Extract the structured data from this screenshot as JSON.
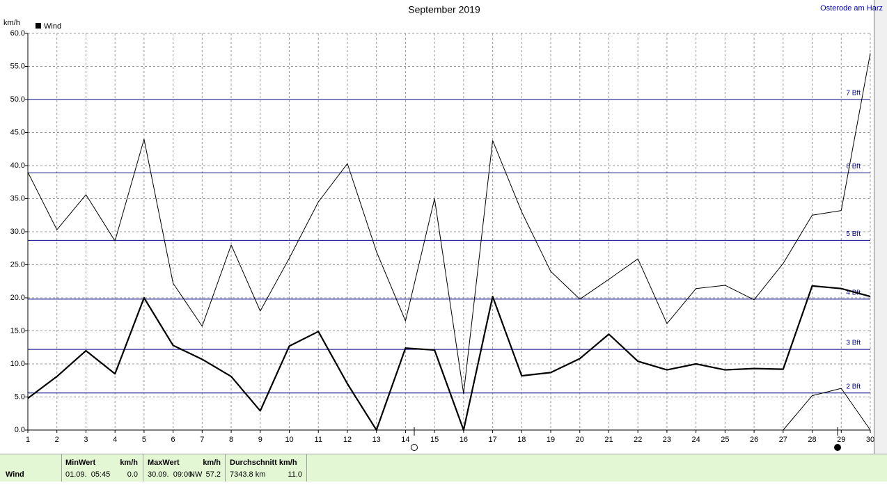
{
  "chart_data": {
    "type": "line",
    "title": "September 2019",
    "location": "Osterode am Harz",
    "ylabel": "km/h",
    "x": [
      1,
      2,
      3,
      4,
      5,
      6,
      7,
      8,
      9,
      10,
      11,
      12,
      13,
      14,
      15,
      16,
      17,
      18,
      19,
      20,
      21,
      22,
      23,
      24,
      25,
      26,
      27,
      28,
      29,
      30
    ],
    "xlim": [
      1,
      30
    ],
    "xticks": [
      1,
      2,
      3,
      4,
      5,
      6,
      7,
      8,
      9,
      10,
      11,
      12,
      13,
      14,
      15,
      16,
      17,
      18,
      19,
      20,
      21,
      22,
      23,
      24,
      25,
      26,
      27,
      28,
      29,
      30
    ],
    "ylim": [
      0,
      60
    ],
    "yticks": [
      {
        "value": 0,
        "label": "0.0"
      },
      {
        "value": 5,
        "label": "5.0"
      },
      {
        "value": 10,
        "label": "10.0"
      },
      {
        "value": 15,
        "label": "15.0"
      },
      {
        "value": 20,
        "label": "20.0"
      },
      {
        "value": 25,
        "label": "25.0"
      },
      {
        "value": 30,
        "label": "30.0"
      },
      {
        "value": 35,
        "label": "35.0"
      },
      {
        "value": 40,
        "label": "40.0"
      },
      {
        "value": 45,
        "label": "45.0"
      },
      {
        "value": 50,
        "label": "50.0"
      },
      {
        "value": 55,
        "label": "55.0"
      },
      {
        "value": 60,
        "label": "60.0"
      }
    ],
    "grid": true,
    "series": [
      {
        "name": "Wind",
        "color": "#000000",
        "width": 2.2,
        "values": [
          4.8,
          8.1,
          12.0,
          8.5,
          20.0,
          12.8,
          10.7,
          8.1,
          2.9,
          12.7,
          14.9,
          7.0,
          0.0,
          12.4,
          12.1,
          0.0,
          20.2,
          8.2,
          8.7,
          10.8,
          14.5,
          10.4,
          9.1,
          10.0,
          9.1,
          9.3,
          9.2,
          21.8,
          21.4,
          20.2
        ]
      },
      {
        "color": "#000000",
        "width": 1,
        "values": [
          39.0,
          30.3,
          35.6,
          28.6,
          44.0,
          22.2,
          15.7,
          28.0,
          18.0,
          26.0,
          34.5,
          40.3,
          27.0,
          16.5,
          35.0,
          5.5,
          43.8,
          33.0,
          24.0,
          19.8,
          22.8,
          25.9,
          16.1,
          21.4,
          21.9,
          19.7,
          25.2,
          32.5,
          33.2,
          57.0
        ]
      },
      {
        "color": "#000000",
        "width": 1,
        "values": [
          null,
          null,
          null,
          null,
          null,
          null,
          null,
          null,
          null,
          null,
          null,
          null,
          null,
          null,
          null,
          null,
          null,
          null,
          null,
          null,
          null,
          null,
          null,
          null,
          null,
          null,
          0.0,
          5.2,
          6.3,
          0.0
        ]
      }
    ],
    "reference_lines": [
      {
        "value": 5.6,
        "label": "2 Bft"
      },
      {
        "value": 12.2,
        "label": "3 Bft"
      },
      {
        "value": 19.8,
        "label": "4 Bft"
      },
      {
        "value": 28.7,
        "label": "5 Bft"
      },
      {
        "value": 38.9,
        "label": "6 Bft"
      },
      {
        "value": 50.0,
        "label": "7 Bft"
      }
    ],
    "reference_color": "#000080"
  },
  "footer": {
    "label": "Wind",
    "min": {
      "header": "MinWert",
      "unit": "km/h",
      "time": "01.09.  05:45",
      "value": "0.0"
    },
    "max": {
      "header": "MaxWert",
      "unit": "km/h",
      "time": "30.09.  09:00",
      "direction": "NW",
      "value": "57.2"
    },
    "avg": {
      "header": "Durchschnitt km/h",
      "distance": "7343.8 km",
      "value": "11.0"
    }
  }
}
